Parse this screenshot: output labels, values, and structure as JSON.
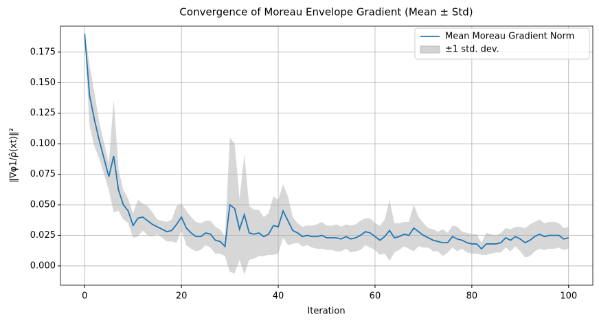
{
  "chart_data": {
    "type": "line",
    "title": "Convergence of Moreau Envelope Gradient (Mean ± Std)",
    "xlabel": "Iteration",
    "ylabel": "‖∇φ1/ρ̂(xt)‖²",
    "x": [
      0,
      1,
      2,
      3,
      4,
      5,
      6,
      7,
      8,
      9,
      10,
      11,
      12,
      13,
      14,
      15,
      16,
      17,
      18,
      19,
      20,
      21,
      22,
      23,
      24,
      25,
      26,
      27,
      28,
      29,
      30,
      31,
      32,
      33,
      34,
      35,
      36,
      37,
      38,
      39,
      40,
      41,
      42,
      43,
      44,
      45,
      46,
      47,
      48,
      49,
      50,
      51,
      52,
      53,
      54,
      55,
      56,
      57,
      58,
      59,
      60,
      61,
      62,
      63,
      64,
      65,
      66,
      67,
      68,
      69,
      70,
      71,
      72,
      73,
      74,
      75,
      76,
      77,
      78,
      79,
      80,
      81,
      82,
      83,
      84,
      85,
      86,
      87,
      88,
      89,
      90,
      91,
      92,
      93,
      94,
      95,
      96,
      97,
      98,
      99,
      100
    ],
    "series": [
      {
        "name": "Mean Moreau Gradient Norm",
        "color": "#1f77b4",
        "values": [
          0.19,
          0.14,
          0.12,
          0.103,
          0.088,
          0.073,
          0.09,
          0.062,
          0.05,
          0.045,
          0.033,
          0.039,
          0.04,
          0.037,
          0.034,
          0.032,
          0.03,
          0.028,
          0.029,
          0.034,
          0.04,
          0.031,
          0.027,
          0.024,
          0.024,
          0.027,
          0.026,
          0.021,
          0.02,
          0.016,
          0.05,
          0.047,
          0.03,
          0.042,
          0.027,
          0.026,
          0.027,
          0.024,
          0.026,
          0.033,
          0.032,
          0.045,
          0.037,
          0.029,
          0.027,
          0.024,
          0.025,
          0.024,
          0.024,
          0.025,
          0.023,
          0.023,
          0.023,
          0.022,
          0.024,
          0.022,
          0.023,
          0.025,
          0.028,
          0.027,
          0.024,
          0.021,
          0.024,
          0.029,
          0.023,
          0.024,
          0.026,
          0.025,
          0.031,
          0.028,
          0.025,
          0.023,
          0.021,
          0.02,
          0.019,
          0.019,
          0.024,
          0.022,
          0.021,
          0.019,
          0.018,
          0.018,
          0.014,
          0.018,
          0.018,
          0.018,
          0.019,
          0.023,
          0.021,
          0.024,
          0.022,
          0.019,
          0.021,
          0.024,
          0.026,
          0.024,
          0.025,
          0.025,
          0.025,
          0.022,
          0.023
        ]
      },
      {
        "name": "±1 std. dev.",
        "color": "#d3d3d3",
        "values": [
          0.002,
          0.025,
          0.022,
          0.015,
          0.013,
          0.011,
          0.046,
          0.017,
          0.012,
          0.01,
          0.01,
          0.015,
          0.011,
          0.012,
          0.01,
          0.006,
          0.007,
          0.008,
          0.009,
          0.015,
          0.011,
          0.014,
          0.013,
          0.012,
          0.011,
          0.01,
          0.011,
          0.011,
          0.01,
          0.008,
          0.055,
          0.053,
          0.025,
          0.049,
          0.022,
          0.02,
          0.019,
          0.016,
          0.017,
          0.024,
          0.022,
          0.022,
          0.02,
          0.011,
          0.008,
          0.008,
          0.008,
          0.009,
          0.01,
          0.011,
          0.01,
          0.01,
          0.011,
          0.01,
          0.01,
          0.011,
          0.011,
          0.012,
          0.011,
          0.012,
          0.011,
          0.012,
          0.014,
          0.025,
          0.012,
          0.011,
          0.01,
          0.011,
          0.019,
          0.012,
          0.01,
          0.008,
          0.009,
          0.008,
          0.011,
          0.008,
          0.009,
          0.01,
          0.007,
          0.008,
          0.008,
          0.008,
          0.005,
          0.009,
          0.008,
          0.007,
          0.008,
          0.008,
          0.009,
          0.008,
          0.01,
          0.012,
          0.013,
          0.012,
          0.012,
          0.011,
          0.011,
          0.011,
          0.01,
          0.009,
          0.009
        ]
      }
    ],
    "xlim": [
      -5,
      105
    ],
    "xticks": [
      0,
      20,
      40,
      60,
      80,
      100
    ],
    "ylim": [
      -0.0158,
      0.1963
    ],
    "yticks": [
      {
        "value": 0,
        "label": "0.000"
      },
      {
        "value": 0.025,
        "label": "0.025"
      },
      {
        "value": 0.05,
        "label": "0.050"
      },
      {
        "value": 0.075,
        "label": "0.075"
      },
      {
        "value": 0.1,
        "label": "0.100"
      },
      {
        "value": 0.125,
        "label": "0.125"
      },
      {
        "value": 0.15,
        "label": "0.150"
      },
      {
        "value": 0.175,
        "label": "0.175"
      }
    ],
    "grid": true,
    "legend": "upper right"
  }
}
